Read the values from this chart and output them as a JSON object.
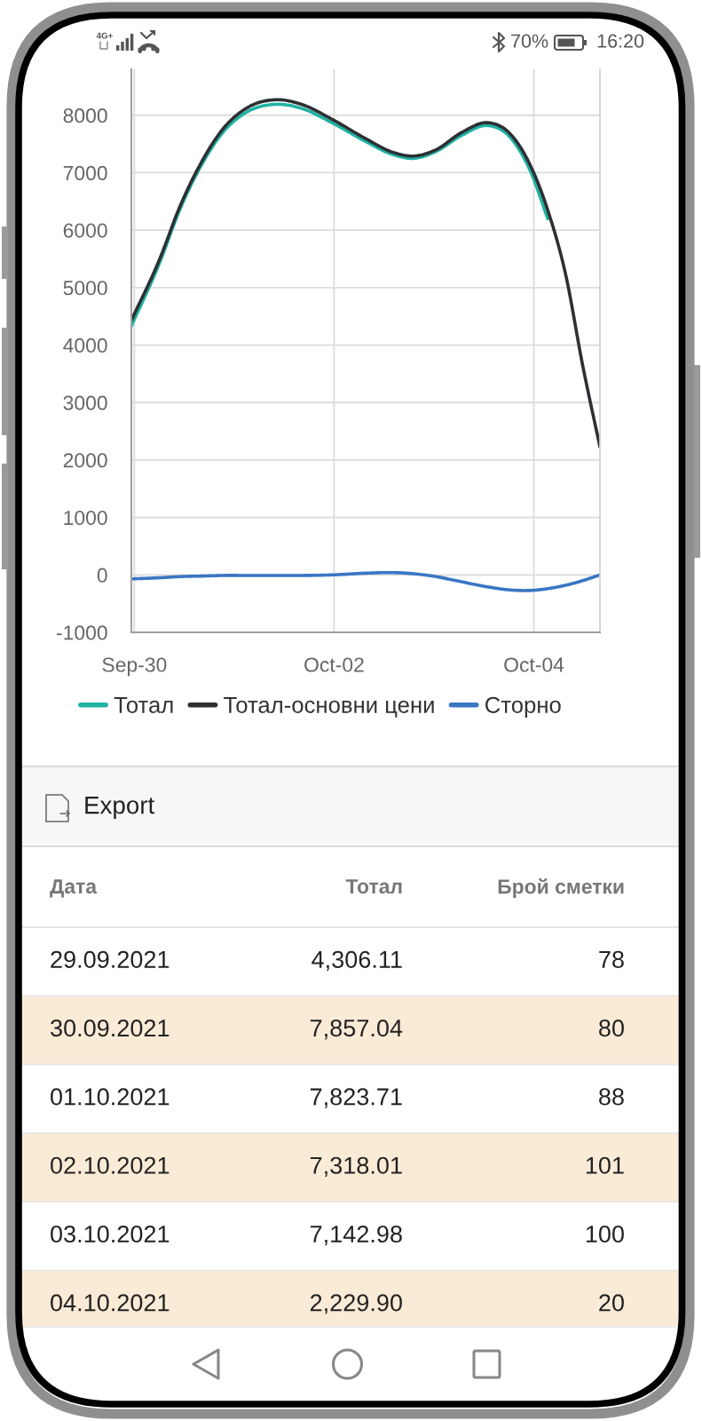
{
  "chart_data": [
    {
      "type": "other",
      "annotations": [
        "4G+",
        "70%",
        "16:20"
      ]
    },
    {
      "type": "line",
      "x": [
        "2021-09-29T23:17",
        "2021-09-30T06:00",
        "2021-09-30T11:00",
        "2021-09-30T16:20",
        "2021-09-30T21:30",
        "2021-10-01T02:40",
        "2021-10-01T10:00",
        "2021-10-01T16:10",
        "2021-10-01T23:30",
        "2021-10-02T07:40",
        "2021-10-02T13:55",
        "2021-10-02T19:10",
        "2021-10-03T00:30",
        "2021-10-03T06:40",
        "2021-10-03T13:00",
        "2021-10-03T18:00",
        "2021-10-03T23:20",
        "2021-10-04T03:20",
        "2021-10-04T07:40",
        "2021-10-04T11:45",
        "2021-10-04T15:53"
      ],
      "series": [
        {
          "name": "Тотал",
          "color": "#20b2a3",
          "values": [
            4330,
            5420,
            6370,
            7160,
            7720,
            8040,
            8190,
            8120,
            7870,
            7540,
            7320,
            7250,
            7370,
            7650,
            7820,
            7640,
            7000,
            6200,
            null,
            null,
            null
          ]
        },
        {
          "name": "Тотал-основни цени",
          "color": "#2d3033",
          "values": [
            4430,
            5480,
            6420,
            7210,
            7780,
            8110,
            8270,
            8190,
            7930,
            7590,
            7360,
            7290,
            7400,
            7700,
            7870,
            7700,
            7100,
            6350,
            5220,
            3640,
            2230
          ]
        },
        {
          "name": "Сторно",
          "color": "#3a76c4",
          "values": [
            -70,
            -50,
            -30,
            -20,
            -10,
            -10,
            -10,
            -10,
            0,
            30,
            40,
            20,
            -30,
            -120,
            -210,
            -260,
            -270,
            -240,
            -180,
            -100,
            0
          ]
        }
      ],
      "xlim": [
        "2021-09-29T23:17",
        "2021-10-04T15:53"
      ],
      "ylim": [
        -1000,
        8800
      ],
      "xticks": [
        {
          "value": "2021-09-30",
          "label": "Sep-30"
        },
        {
          "value": "2021-10-02",
          "label": "Oct-02"
        },
        {
          "value": "2021-10-04",
          "label": "Oct-04"
        }
      ],
      "yticks": [
        -1000,
        0,
        1000,
        2000,
        3000,
        4000,
        5000,
        6000,
        7000,
        8000
      ],
      "grid": true,
      "legend": "bottom"
    },
    {
      "type": "other",
      "annotations": [
        "Export"
      ],
      "xlabel": "Дата",
      "categories": [
        "29.09.2021",
        "30.09.2021",
        "01.10.2021",
        "02.10.2021",
        "03.10.2021",
        "04.10.2021"
      ],
      "series": [
        {
          "name": "Тотал",
          "values": [
            4306.11,
            7857.04,
            7823.71,
            7318.01,
            7142.98,
            2229.9
          ],
          "value_labels": [
            "4,306.11",
            "7,857.04",
            "7,823.71",
            "7,318.01",
            "7,142.98",
            "2,229.90"
          ]
        },
        {
          "name": "Брой сметки",
          "values": [
            78,
            80,
            88,
            101,
            100,
            20
          ],
          "value_labels": [
            "78",
            "80",
            "88",
            "101",
            "100",
            "20"
          ]
        }
      ]
    }
  ]
}
